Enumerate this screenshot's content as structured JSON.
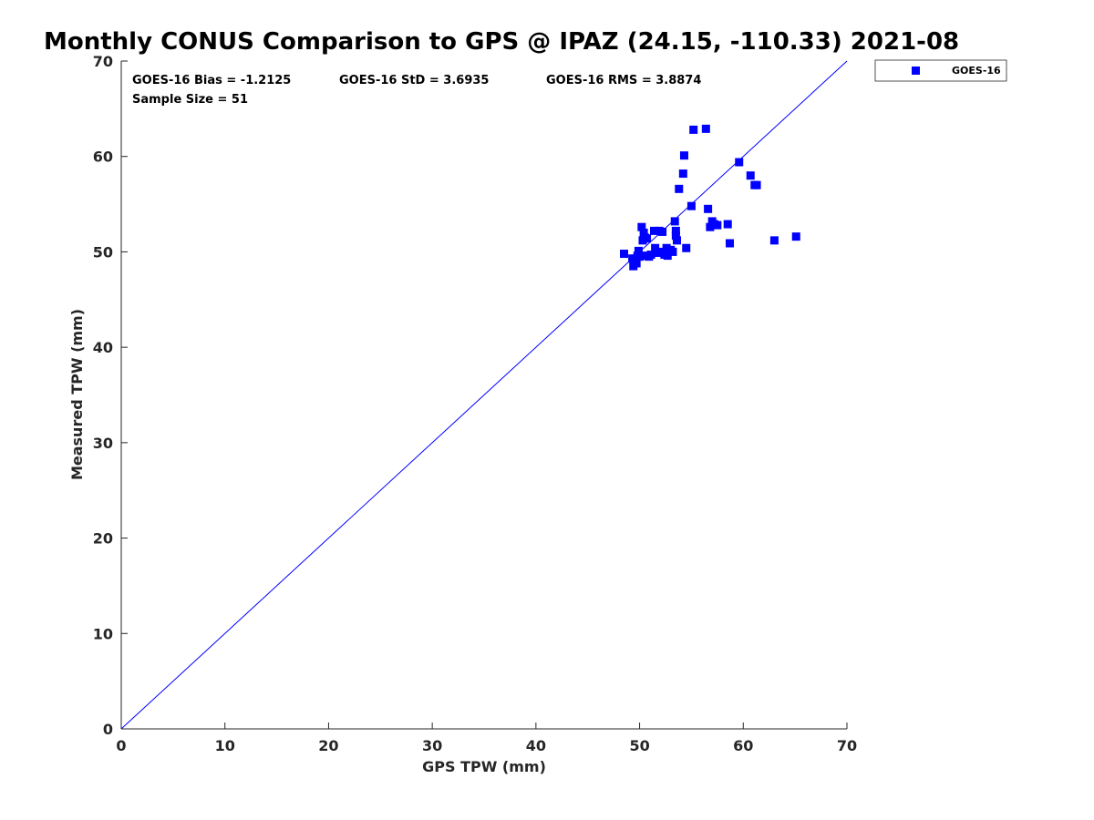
{
  "chart_data": {
    "type": "scatter",
    "title": "Monthly CONUS Comparison to GPS @ IPAZ (24.15, -110.33) 2021-08",
    "xlabel": "GPS TPW (mm)",
    "ylabel": "Measured TPW (mm)",
    "xlim": [
      0,
      70
    ],
    "ylim": [
      0,
      70
    ],
    "xticks": [
      0,
      10,
      20,
      30,
      40,
      50,
      60,
      70
    ],
    "yticks": [
      0,
      10,
      20,
      30,
      40,
      50,
      60,
      70
    ],
    "grid": false,
    "legend_position": "outside-top-right",
    "reference_line": {
      "from": [
        0,
        0
      ],
      "to": [
        70,
        70
      ],
      "color": "#0000ff"
    },
    "annotations": {
      "bias": "GOES-16 Bias = -1.2125",
      "std": "GOES-16 StD = 3.6935",
      "rms": "GOES-16 RMS = 3.8874",
      "sample": "Sample Size = 51"
    },
    "series": [
      {
        "name": "GOES-16",
        "color": "#0000ff",
        "marker": "square",
        "points": [
          [
            48.5,
            49.8
          ],
          [
            49.4,
            48.5
          ],
          [
            49.6,
            49.3
          ],
          [
            49.7,
            48.8
          ],
          [
            49.8,
            49.6
          ],
          [
            49.9,
            50.1
          ],
          [
            50.0,
            49.5
          ],
          [
            50.2,
            52.6
          ],
          [
            50.3,
            51.2
          ],
          [
            50.4,
            52.0
          ],
          [
            50.5,
            51.5
          ],
          [
            50.6,
            49.6
          ],
          [
            50.7,
            51.4
          ],
          [
            50.9,
            49.5
          ],
          [
            51.1,
            49.7
          ],
          [
            51.4,
            52.2
          ],
          [
            51.5,
            50.4
          ],
          [
            51.7,
            49.9
          ],
          [
            51.9,
            52.2
          ],
          [
            52.1,
            50.0
          ],
          [
            52.2,
            52.1
          ],
          [
            52.4,
            49.7
          ],
          [
            52.6,
            50.4
          ],
          [
            52.7,
            49.6
          ],
          [
            53.0,
            50.2
          ],
          [
            53.2,
            50.0
          ],
          [
            53.4,
            53.2
          ],
          [
            53.5,
            52.2
          ],
          [
            53.5,
            51.7
          ],
          [
            53.6,
            51.2
          ],
          [
            53.8,
            56.6
          ],
          [
            54.2,
            58.2
          ],
          [
            54.3,
            60.1
          ],
          [
            54.5,
            50.4
          ],
          [
            55.0,
            54.8
          ],
          [
            55.2,
            62.8
          ],
          [
            56.4,
            62.9
          ],
          [
            56.6,
            54.5
          ],
          [
            56.8,
            52.6
          ],
          [
            57.0,
            53.2
          ],
          [
            57.2,
            52.9
          ],
          [
            57.5,
            52.8
          ],
          [
            58.5,
            52.9
          ],
          [
            58.7,
            50.9
          ],
          [
            59.6,
            59.4
          ],
          [
            60.7,
            58.0
          ],
          [
            61.1,
            57.0
          ],
          [
            61.3,
            57.0
          ],
          [
            63.0,
            51.2
          ],
          [
            65.1,
            51.6
          ],
          [
            49.3,
            49.3
          ]
        ]
      }
    ]
  }
}
